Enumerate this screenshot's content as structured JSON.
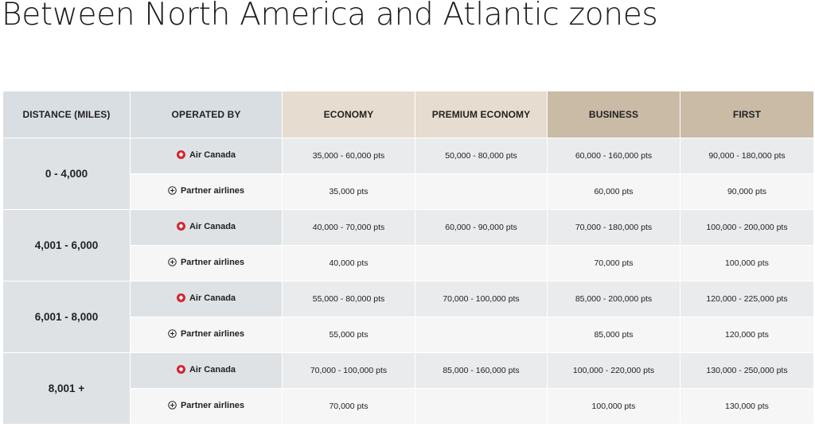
{
  "page": {
    "title": "Between North America and Atlantic zones"
  },
  "table": {
    "headers": {
      "distance": "DISTANCE (MILES)",
      "operated_by": "OPERATED BY",
      "economy": "ECONOMY",
      "premium_economy": "PREMIUM ECONOMY",
      "business": "BUSINESS",
      "first": "FIRST"
    },
    "operators": {
      "air_canada": {
        "label": "Air Canada",
        "icon": "maple-leaf-icon"
      },
      "partner": {
        "label": "Partner airlines",
        "icon": "partner-plus-circle-icon"
      }
    },
    "rows": [
      {
        "distance": "0 - 4,000",
        "air_canada": {
          "economy": "35,000 - 60,000 pts",
          "premium_economy": "50,000 - 80,000 pts",
          "business": "60,000 - 160,000 pts",
          "first": "90,000 - 180,000 pts"
        },
        "partner": {
          "economy": "35,000 pts",
          "premium_economy": "",
          "business": "60,000 pts",
          "first": "90,000 pts"
        }
      },
      {
        "distance": "4,001 - 6,000",
        "air_canada": {
          "economy": "40,000 - 70,000 pts",
          "premium_economy": "60,000 - 90,000 pts",
          "business": "70,000 - 180,000 pts",
          "first": "100,000 - 200,000 pts"
        },
        "partner": {
          "economy": "40,000 pts",
          "premium_economy": "",
          "business": "70,000 pts",
          "first": "100,000 pts"
        }
      },
      {
        "distance": "6,001 - 8,000",
        "air_canada": {
          "economy": "55,000 - 80,000 pts",
          "premium_economy": "70,000 - 100,000 pts",
          "business": "85,000 - 200,000 pts",
          "first": "120,000 - 225,000 pts"
        },
        "partner": {
          "economy": "55,000 pts",
          "premium_economy": "",
          "business": "85,000 pts",
          "first": "120,000 pts"
        }
      },
      {
        "distance": "8,001 +",
        "air_canada": {
          "economy": "70,000 - 100,000 pts",
          "premium_economy": "85,000 - 160,000 pts",
          "business": "100,000 - 220,000 pts",
          "first": "130,000 - 250,000 pts"
        },
        "partner": {
          "economy": "70,000 pts",
          "premium_economy": "",
          "business": "100,000 pts",
          "first": "130,000 pts"
        }
      }
    ]
  },
  "colors": {
    "air_canada_red": "#d22630",
    "header_grey": "#d9dee3",
    "header_beige": "#e6ddd0",
    "header_tan": "#c9bba6"
  }
}
